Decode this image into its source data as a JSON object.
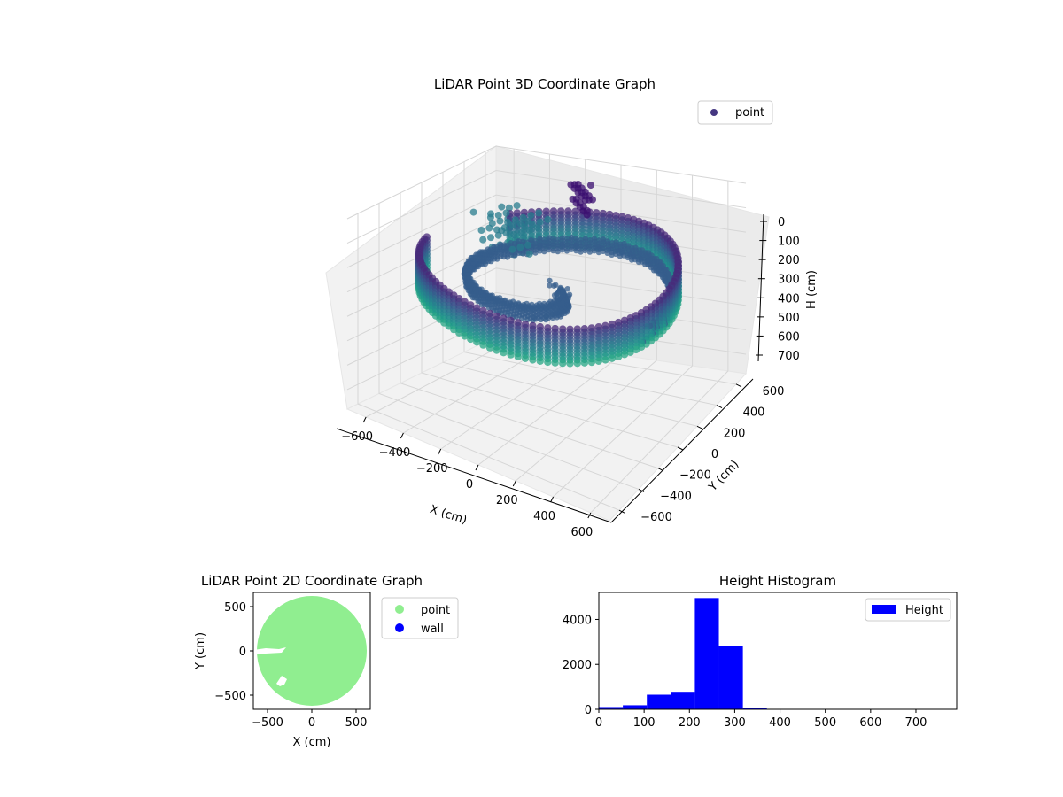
{
  "chart_data": [
    {
      "type": "scatter",
      "projection": "3d",
      "title": "LiDAR Point 3D Coordinate Graph",
      "xlabel": "X (cm)",
      "ylabel": "Y (cm)",
      "zlabel": "H (cm)",
      "xticks": [
        -600,
        -400,
        -200,
        0,
        200,
        400,
        600
      ],
      "yticks": [
        -600,
        -400,
        -200,
        0,
        200,
        400,
        600
      ],
      "zticks": [
        0,
        100,
        200,
        300,
        400,
        500,
        600,
        700
      ],
      "zinverted": true,
      "legend": {
        "placement": "upper-right",
        "entries": [
          "point"
        ]
      },
      "series": [
        {
          "name": "point",
          "shape": "circular wall of radius about 620 cm with heights about 220-320 cm, plus scattered interior points",
          "radius": 620,
          "wall_height_range": [
            220,
            320
          ],
          "colormap": "viridis"
        }
      ],
      "legend_marker_color": "#453781",
      "grid": true
    },
    {
      "type": "scatter",
      "title": "LiDAR Point 2D Coordinate Graph",
      "xlabel": "X (cm)",
      "ylabel": "Y (cm)",
      "xticks": [
        -500,
        0,
        500
      ],
      "yticks": [
        -500,
        0,
        500
      ],
      "xlim": [
        -660,
        660
      ],
      "ylim": [
        -660,
        660
      ],
      "legend": {
        "placement": "outside-upper-right",
        "entries": [
          "point",
          "wall"
        ]
      },
      "series": [
        {
          "name": "point",
          "color": "#90ee90",
          "radius": 620
        },
        {
          "name": "wall",
          "color": "#0000ff"
        }
      ]
    },
    {
      "type": "bar",
      "title": "Height Histogram",
      "xlim": [
        0,
        790
      ],
      "ylim": [
        0,
        5200
      ],
      "xticks": [
        0,
        100,
        200,
        300,
        400,
        500,
        600,
        700
      ],
      "yticks": [
        0,
        2000,
        4000
      ],
      "bin_edges": [
        0,
        53,
        106,
        159,
        212,
        265,
        318,
        371,
        424,
        477,
        530,
        583,
        636,
        689,
        742
      ],
      "values": [
        100,
        180,
        650,
        780,
        4950,
        2830,
        60,
        0,
        0,
        0,
        0,
        0,
        0,
        0
      ],
      "legend": {
        "placement": "upper-right",
        "entries": [
          "Height"
        ]
      },
      "series": [
        {
          "name": "Height",
          "color": "#0000ff"
        }
      ]
    }
  ]
}
